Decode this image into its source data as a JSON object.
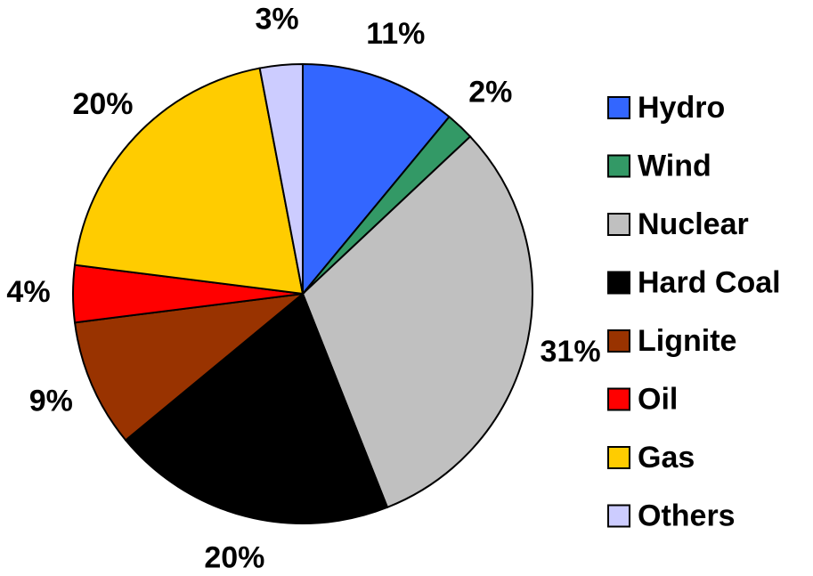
{
  "chart_data": {
    "type": "pie",
    "categories": [
      "Hydro",
      "Wind",
      "Nuclear",
      "Hard Coal",
      "Lignite",
      "Oil",
      "Gas",
      "Others"
    ],
    "values": [
      11,
      2,
      31,
      20,
      9,
      4,
      20,
      3
    ],
    "value_labels": [
      "11%",
      "2%",
      "31%",
      "20%",
      "9%",
      "4%",
      "20%",
      "3%"
    ],
    "colors": [
      "#3366ff",
      "#339966",
      "#c0c0c0",
      "#000000",
      "#993300",
      "#ff0000",
      "#ffcc00",
      "#ccccff"
    ],
    "legend": "right"
  }
}
